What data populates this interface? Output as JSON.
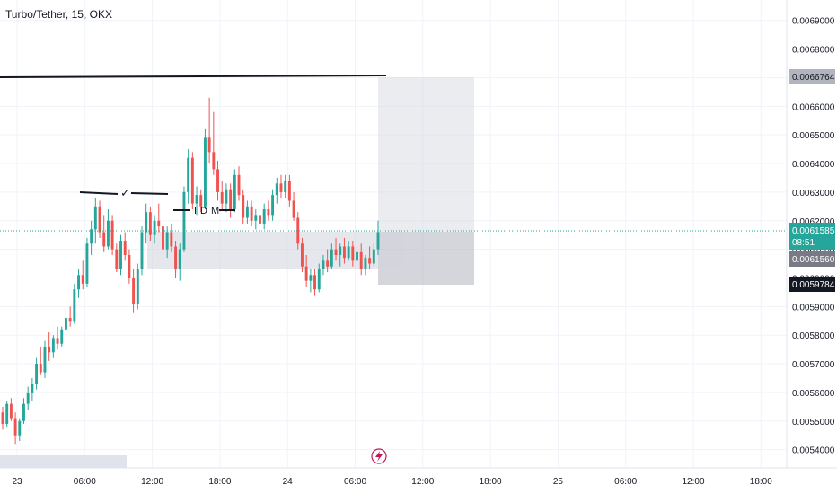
{
  "title": "Turbo/Tether, 15, OKX",
  "colors": {
    "up": "#26a69a",
    "down": "#ef5350",
    "price_line": "#26a69a",
    "zone": "#d1d4dc",
    "line": "#131722"
  },
  "chart_data": {
    "type": "candlestick",
    "yticks": [
      "0.0069000",
      "0.0068000",
      "0.0067000",
      "0.0066000",
      "0.0065000",
      "0.0064000",
      "0.0063000",
      "0.0062000",
      "0.0061000",
      "0.0060000",
      "0.0059000",
      "0.0058000",
      "0.0057000",
      "0.0056000",
      "0.0055000",
      "0.0054000"
    ],
    "ylim": [
      0.00538,
      0.00694
    ],
    "xticks": [
      "23",
      "06:00",
      "12:00",
      "18:00",
      "24",
      "06:00",
      "12:00",
      "18:00",
      "25",
      "06:00",
      "12:00",
      "18:00"
    ],
    "last_price": "0.0061585",
    "countdown": "08:51",
    "levels": {
      "upper": "0.0066764",
      "mid": "0.0061560",
      "lower": "0.0059784"
    },
    "annotations": {
      "idm": "IDM",
      "check": "✓"
    },
    "candles": [
      [
        0.00553,
        0.00555,
        0.00547,
        0.00549
      ],
      [
        0.00549,
        0.00557,
        0.00548,
        0.00556
      ],
      [
        0.00556,
        0.00558,
        0.0055,
        0.00551
      ],
      [
        0.00551,
        0.00553,
        0.00542,
        0.00545
      ],
      [
        0.00545,
        0.00551,
        0.00543,
        0.0055
      ],
      [
        0.0055,
        0.00558,
        0.00549,
        0.00556
      ],
      [
        0.00556,
        0.00562,
        0.00554,
        0.0056
      ],
      [
        0.0056,
        0.00565,
        0.00557,
        0.00563
      ],
      [
        0.00563,
        0.00572,
        0.00561,
        0.0057
      ],
      [
        0.0057,
        0.00576,
        0.00566,
        0.00567
      ],
      [
        0.00567,
        0.00578,
        0.00565,
        0.00576
      ],
      [
        0.00576,
        0.00581,
        0.00571,
        0.00574
      ],
      [
        0.00574,
        0.0058,
        0.00572,
        0.00579
      ],
      [
        0.00579,
        0.00583,
        0.00575,
        0.00577
      ],
      [
        0.00577,
        0.00583,
        0.00576,
        0.00582
      ],
      [
        0.00582,
        0.00588,
        0.0058,
        0.00586
      ],
      [
        0.00586,
        0.0059,
        0.00583,
        0.00585
      ],
      [
        0.00585,
        0.00598,
        0.00584,
        0.00596
      ],
      [
        0.00596,
        0.00603,
        0.00593,
        0.00601
      ],
      [
        0.00601,
        0.00606,
        0.00596,
        0.00598
      ],
      [
        0.00598,
        0.00614,
        0.00597,
        0.00612
      ],
      [
        0.00612,
        0.0062,
        0.00608,
        0.00617
      ],
      [
        0.00617,
        0.00628,
        0.00612,
        0.00625
      ],
      [
        0.00625,
        0.00627,
        0.00614,
        0.00616
      ],
      [
        0.00616,
        0.00622,
        0.00609,
        0.00611
      ],
      [
        0.00611,
        0.00624,
        0.0061,
        0.0062
      ],
      [
        0.0062,
        0.00622,
        0.00608,
        0.0061
      ],
      [
        0.0061,
        0.00612,
        0.00602,
        0.00603
      ],
      [
        0.00603,
        0.00615,
        0.00601,
        0.00613
      ],
      [
        0.00613,
        0.00616,
        0.00606,
        0.00608
      ],
      [
        0.00608,
        0.0061,
        0.00598,
        0.006
      ],
      [
        0.006,
        0.00603,
        0.00588,
        0.00591
      ],
      [
        0.00591,
        0.00605,
        0.00589,
        0.00603
      ],
      [
        0.00603,
        0.00618,
        0.00601,
        0.00616
      ],
      [
        0.00616,
        0.00626,
        0.00612,
        0.00623
      ],
      [
        0.00623,
        0.00625,
        0.00613,
        0.00615
      ],
      [
        0.00615,
        0.00622,
        0.00612,
        0.0062
      ],
      [
        0.0062,
        0.00626,
        0.00616,
        0.00618
      ],
      [
        0.00618,
        0.0062,
        0.00608,
        0.0061
      ],
      [
        0.0061,
        0.00618,
        0.00607,
        0.00616
      ],
      [
        0.00616,
        0.00619,
        0.00609,
        0.00611
      ],
      [
        0.00611,
        0.00613,
        0.006,
        0.00603
      ],
      [
        0.00603,
        0.00612,
        0.00599,
        0.0061
      ],
      [
        0.0061,
        0.00632,
        0.00609,
        0.0063
      ],
      [
        0.0063,
        0.00645,
        0.00626,
        0.00642
      ],
      [
        0.00642,
        0.00644,
        0.00624,
        0.00626
      ],
      [
        0.00626,
        0.00632,
        0.00622,
        0.00629
      ],
      [
        0.00629,
        0.00631,
        0.00623,
        0.00625
      ],
      [
        0.00625,
        0.00652,
        0.00624,
        0.00649
      ],
      [
        0.00649,
        0.00663,
        0.0064,
        0.00644
      ],
      [
        0.00644,
        0.00658,
        0.00636,
        0.00638
      ],
      [
        0.00638,
        0.00641,
        0.00627,
        0.0063
      ],
      [
        0.0063,
        0.00634,
        0.00624,
        0.00626
      ],
      [
        0.00626,
        0.00633,
        0.00623,
        0.00631
      ],
      [
        0.00631,
        0.00633,
        0.00621,
        0.00624
      ],
      [
        0.00624,
        0.00638,
        0.00623,
        0.00636
      ],
      [
        0.00636,
        0.00639,
        0.00627,
        0.00629
      ],
      [
        0.00629,
        0.00631,
        0.00619,
        0.00621
      ],
      [
        0.00621,
        0.00627,
        0.00619,
        0.00625
      ],
      [
        0.00625,
        0.00627,
        0.00618,
        0.0062
      ],
      [
        0.0062,
        0.00624,
        0.00617,
        0.00622
      ],
      [
        0.00622,
        0.00625,
        0.00618,
        0.00619
      ],
      [
        0.00619,
        0.00626,
        0.00617,
        0.00624
      ],
      [
        0.00624,
        0.00627,
        0.0062,
        0.00622
      ],
      [
        0.00622,
        0.00631,
        0.0062,
        0.00629
      ],
      [
        0.00629,
        0.00635,
        0.00626,
        0.00633
      ],
      [
        0.00633,
        0.00636,
        0.00628,
        0.0063
      ],
      [
        0.0063,
        0.00636,
        0.00628,
        0.00634
      ],
      [
        0.00634,
        0.00636,
        0.00625,
        0.00627
      ],
      [
        0.00627,
        0.0063,
        0.0062,
        0.00621
      ],
      [
        0.00621,
        0.00623,
        0.0061,
        0.00612
      ],
      [
        0.00612,
        0.00614,
        0.00602,
        0.00604
      ],
      [
        0.00604,
        0.00608,
        0.00597,
        0.00599
      ],
      [
        0.00599,
        0.00603,
        0.00595,
        0.00601
      ],
      [
        0.00601,
        0.00603,
        0.00594,
        0.00596
      ],
      [
        0.00596,
        0.00605,
        0.00595,
        0.00603
      ],
      [
        0.00603,
        0.00608,
        0.00601,
        0.00606
      ],
      [
        0.00606,
        0.0061,
        0.00602,
        0.00604
      ],
      [
        0.00604,
        0.00612,
        0.00603,
        0.0061
      ],
      [
        0.0061,
        0.00614,
        0.00606,
        0.00608
      ],
      [
        0.00608,
        0.00612,
        0.00604,
        0.00611
      ],
      [
        0.00611,
        0.00614,
        0.00605,
        0.00607
      ],
      [
        0.00607,
        0.00613,
        0.00606,
        0.00611
      ],
      [
        0.00611,
        0.00613,
        0.00604,
        0.00606
      ],
      [
        0.00606,
        0.00611,
        0.00604,
        0.00609
      ],
      [
        0.00609,
        0.00612,
        0.00601,
        0.00603
      ],
      [
        0.00603,
        0.00608,
        0.00601,
        0.00607
      ],
      [
        0.00607,
        0.00611,
        0.00603,
        0.00605
      ],
      [
        0.00605,
        0.00612,
        0.00604,
        0.0061
      ],
      [
        0.0061,
        0.0062,
        0.00608,
        0.00616
      ]
    ]
  }
}
